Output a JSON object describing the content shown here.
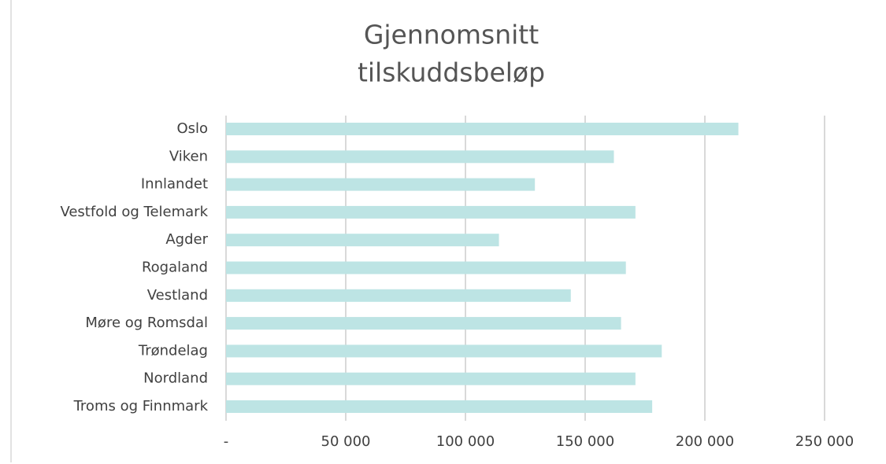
{
  "chart_data": {
    "type": "bar",
    "orientation": "horizontal",
    "title": [
      "Gjennomsnitt",
      "tilskuddsbeløp"
    ],
    "categories": [
      "Oslo",
      "Viken",
      "Innlandet",
      "Vestfold og Telemark",
      "Agder",
      "Rogaland",
      "Vestland",
      "Møre og Romsdal",
      "Trøndelag",
      "Nordland",
      "Troms og Finnmark"
    ],
    "values": [
      214000,
      162000,
      129000,
      171000,
      114000,
      167000,
      144000,
      165000,
      182000,
      171000,
      178000
    ],
    "color": "#bde4e4",
    "xlim": [
      0,
      250000
    ],
    "xticks": [
      {
        "value": 0,
        "label": "-"
      },
      {
        "value": 50000,
        "label": "50 000"
      },
      {
        "value": 100000,
        "label": "100 000"
      },
      {
        "value": 150000,
        "label": "150 000"
      },
      {
        "value": 200000,
        "label": "200 000"
      },
      {
        "value": 250000,
        "label": "250 000"
      }
    ],
    "grid": true
  }
}
